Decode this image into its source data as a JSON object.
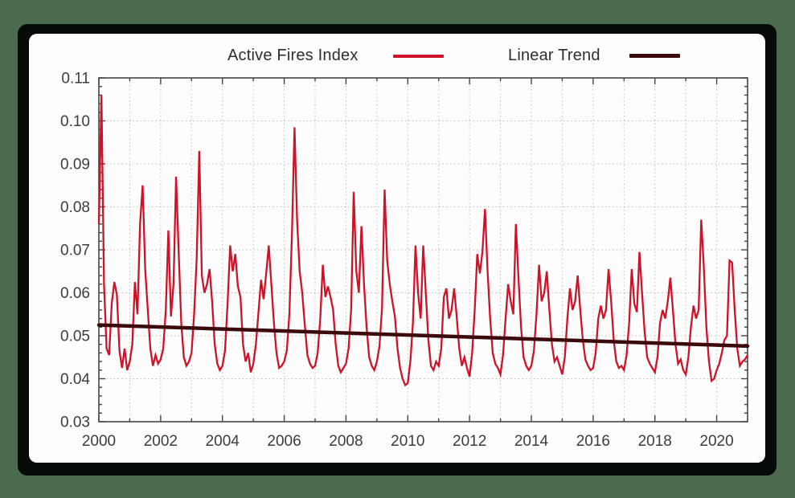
{
  "colors": {
    "background_green": "#4a6b4e",
    "shadow_frame": "#060b07",
    "card": "#fdfdfd",
    "grid": "#bcbcbc",
    "axis": "#454545",
    "tick_text": "#3c3c3c",
    "legend_text": "#2e2e2e"
  },
  "chart_data": {
    "type": "line",
    "title": "",
    "xlabel": "",
    "ylabel": "",
    "x_range": [
      2000,
      2021
    ],
    "y_range": [
      0.03,
      0.11
    ],
    "x_tick_labels": [
      "2000",
      "2002",
      "2004",
      "2006",
      "2008",
      "2010",
      "2012",
      "2014",
      "2016",
      "2018",
      "2020"
    ],
    "x_major_tick_step_years": 2,
    "x_minor_tick_step_years": 1,
    "y_tick_labels": [
      "0.03",
      "0.04",
      "0.05",
      "0.06",
      "0.07",
      "0.08",
      "0.09",
      "0.10",
      "0.11"
    ],
    "y_major_tick_step": 0.01,
    "y_minor_tick_step": 0.002,
    "grid": {
      "vertical_every_years": 1,
      "horizontal_every": 0.01,
      "style": "dotted",
      "on": true
    },
    "legend_position": "top-center",
    "series": [
      {
        "name": "Active Fires Index",
        "color": "#d01228",
        "line_width": 2.3,
        "start_year": 2000,
        "step_months": 1,
        "values": [
          0.076,
          0.106,
          0.062,
          0.047,
          0.0455,
          0.0575,
          0.0625,
          0.0595,
          0.0465,
          0.0425,
          0.047,
          0.042,
          0.044,
          0.048,
          0.0625,
          0.055,
          0.076,
          0.085,
          0.0655,
          0.056,
          0.047,
          0.043,
          0.0455,
          0.0435,
          0.0445,
          0.047,
          0.056,
          0.0745,
          0.0545,
          0.062,
          0.087,
          0.0695,
          0.053,
          0.045,
          0.043,
          0.044,
          0.046,
          0.055,
          0.068,
          0.093,
          0.064,
          0.06,
          0.062,
          0.0655,
          0.058,
          0.048,
          0.0435,
          0.042,
          0.043,
          0.0465,
          0.0575,
          0.071,
          0.065,
          0.069,
          0.0615,
          0.059,
          0.048,
          0.044,
          0.046,
          0.0415,
          0.0435,
          0.048,
          0.0555,
          0.063,
          0.0585,
          0.0645,
          0.071,
          0.062,
          0.053,
          0.046,
          0.0425,
          0.043,
          0.044,
          0.0465,
          0.055,
          0.0735,
          0.0985,
          0.077,
          0.065,
          0.06,
          0.0525,
          0.0455,
          0.0435,
          0.0425,
          0.043,
          0.046,
          0.054,
          0.0665,
          0.059,
          0.0615,
          0.059,
          0.056,
          0.048,
          0.043,
          0.0415,
          0.0425,
          0.0435,
          0.047,
          0.056,
          0.0835,
          0.065,
          0.06,
          0.0755,
          0.062,
          0.052,
          0.045,
          0.043,
          0.042,
          0.044,
          0.0475,
          0.0565,
          0.084,
          0.0675,
          0.062,
          0.058,
          0.0545,
          0.047,
          0.0425,
          0.04,
          0.0385,
          0.039,
          0.044,
          0.053,
          0.071,
          0.06,
          0.054,
          0.071,
          0.06,
          0.049,
          0.043,
          0.042,
          0.044,
          0.043,
          0.047,
          0.059,
          0.061,
          0.054,
          0.056,
          0.061,
          0.0545,
          0.047,
          0.043,
          0.045,
          0.0425,
          0.0405,
          0.046,
          0.056,
          0.069,
          0.0645,
          0.0695,
          0.0795,
          0.065,
          0.054,
          0.046,
          0.0435,
          0.0425,
          0.041,
          0.0455,
          0.054,
          0.062,
          0.058,
          0.055,
          0.076,
          0.0635,
          0.052,
          0.045,
          0.043,
          0.042,
          0.043,
          0.0465,
          0.055,
          0.0665,
          0.058,
          0.06,
          0.065,
          0.056,
          0.048,
          0.044,
          0.045,
          0.043,
          0.041,
          0.045,
          0.054,
          0.061,
          0.056,
          0.058,
          0.064,
          0.056,
          0.049,
          0.0445,
          0.043,
          0.042,
          0.0425,
          0.046,
          0.054,
          0.057,
          0.054,
          0.056,
          0.0655,
          0.058,
          0.049,
          0.044,
          0.0425,
          0.043,
          0.042,
          0.0455,
          0.053,
          0.0655,
          0.0575,
          0.0555,
          0.0695,
          0.06,
          0.051,
          0.045,
          0.0435,
          0.0425,
          0.0415,
          0.045,
          0.053,
          0.056,
          0.054,
          0.058,
          0.0635,
          0.056,
          0.048,
          0.0435,
          0.0445,
          0.042,
          0.041,
          0.045,
          0.052,
          0.057,
          0.054,
          0.056,
          0.077,
          0.066,
          0.052,
          0.044,
          0.0395,
          0.04,
          0.042,
          0.0435,
          0.046,
          0.049,
          0.05,
          0.0675,
          0.067,
          0.056,
          0.047,
          0.043,
          0.044,
          0.0445,
          0.0455
        ]
      },
      {
        "name": "Linear Trend",
        "color": "#3c0a0a",
        "line_width": 4.5,
        "points": [
          [
            2000,
            0.0525
          ],
          [
            2021,
            0.0476
          ]
        ]
      }
    ]
  }
}
